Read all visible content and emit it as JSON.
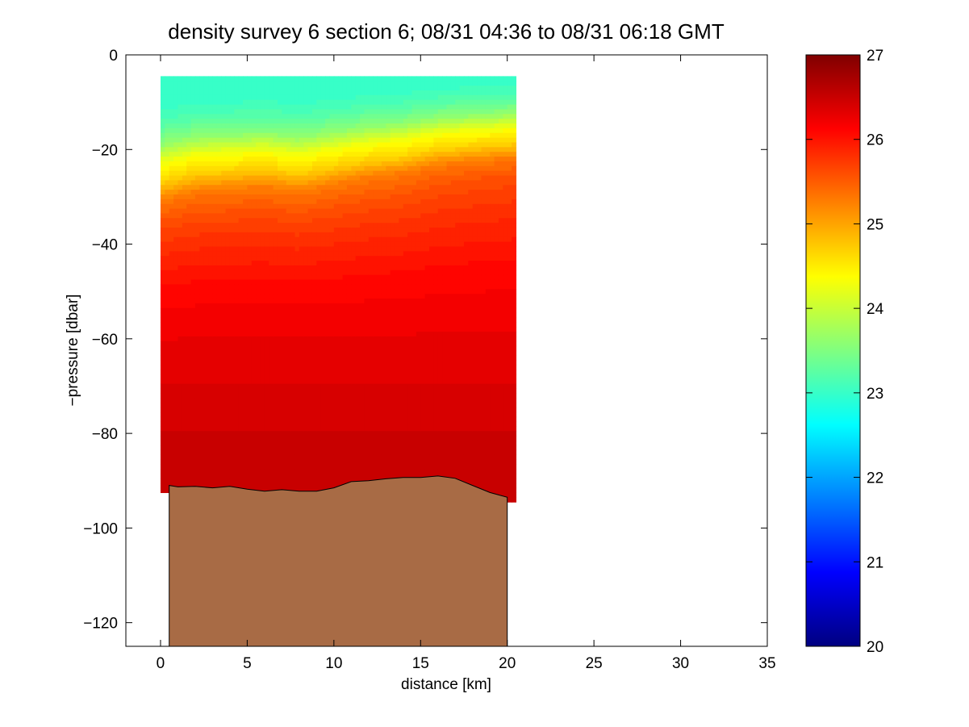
{
  "chart_data": {
    "type": "heatmap",
    "title": "density survey 6 section 6; 08/31 04:36 to 08/31 06:18 GMT",
    "xlabel": "distance [km]",
    "ylabel": "−pressure [dbar]",
    "xlim": [
      -2,
      35
    ],
    "ylim": [
      -125,
      0
    ],
    "x_ticks": [
      0,
      5,
      10,
      15,
      20,
      25,
      30,
      35
    ],
    "x_tick_labels": [
      "0",
      "5",
      "10",
      "15",
      "20",
      "25",
      "30",
      "35"
    ],
    "y_ticks": [
      0,
      -20,
      -40,
      -60,
      -80,
      -100,
      -120
    ],
    "y_tick_labels": [
      "0",
      "−20",
      "−40",
      "−60",
      "−80",
      "−100",
      "−120"
    ],
    "colorbar": {
      "range": [
        20,
        27
      ],
      "ticks": [
        20,
        21,
        22,
        23,
        24,
        25,
        26,
        27
      ],
      "tick_labels": [
        "20",
        "21",
        "22",
        "23",
        "24",
        "25",
        "26",
        "27"
      ],
      "colormap": "jet"
    },
    "density_profile": {
      "depth": [
        -4,
        -10,
        -14,
        -18,
        -22,
        -26,
        -30,
        -35,
        -40,
        -50,
        -60,
        -70,
        -80,
        -90
      ],
      "value": [
        23.0,
        23.0,
        23.2,
        23.6,
        24.3,
        24.7,
        25.3,
        25.6,
        25.8,
        26.1,
        26.25,
        26.35,
        26.45,
        26.5
      ]
    },
    "pycnocline_depth": {
      "distance": [
        0,
        2,
        4,
        6,
        8,
        10,
        12,
        14,
        16,
        18,
        20.5
      ],
      "depth": [
        -27,
        -25,
        -24.5,
        -24,
        -25,
        -23.5,
        -22,
        -21,
        -19,
        -18,
        -17
      ]
    },
    "data_extent": {
      "distance": [
        0,
        20.5
      ],
      "top": -4.5
    },
    "bathymetry": {
      "distance": [
        0.5,
        1,
        2,
        3,
        4,
        5,
        6,
        7,
        8,
        9,
        10,
        11,
        12,
        13,
        14,
        15,
        16,
        17,
        18,
        19,
        20
      ],
      "depth": [
        -91,
        -91.3,
        -91.2,
        -91.5,
        -91.2,
        -91.8,
        -92.2,
        -91.9,
        -92.2,
        -92.2,
        -91.5,
        -90.2,
        -90.0,
        -89.6,
        -89.3,
        -89.3,
        -89.0,
        -89.5,
        -91,
        -92.5,
        -93.5
      ],
      "color": "#a86b45"
    }
  }
}
